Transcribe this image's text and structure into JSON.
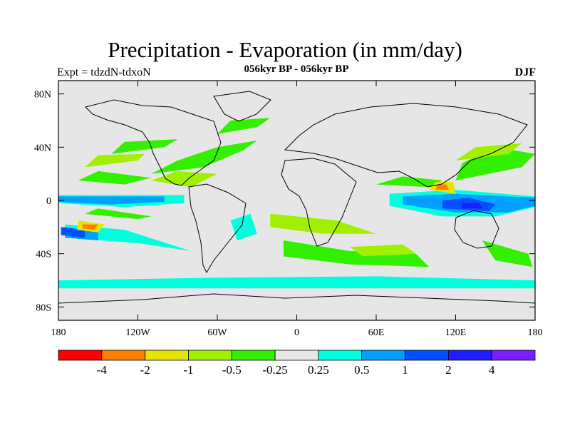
{
  "figure": {
    "title": "Precipitation - Evaporation (in mm/day)",
    "subtitle": "056kyr BP - 056kyr BP",
    "experiment": "Expt = tdzdN-tdxoN",
    "season": "DJF"
  },
  "map": {
    "projection": "equirectangular",
    "lon_range": [
      -180,
      180
    ],
    "lat_range": [
      -90,
      90
    ],
    "land_color": "#e6e6e6",
    "x_ticks": [
      {
        "value": -180,
        "label": "180"
      },
      {
        "value": -120,
        "label": "120W"
      },
      {
        "value": -60,
        "label": "60W"
      },
      {
        "value": 0,
        "label": "0"
      },
      {
        "value": 60,
        "label": "60E"
      },
      {
        "value": 120,
        "label": "120E"
      },
      {
        "value": 180,
        "label": "180"
      }
    ],
    "y_ticks": [
      {
        "value": 80,
        "label": "80N"
      },
      {
        "value": 40,
        "label": "40N"
      },
      {
        "value": 0,
        "label": "0"
      },
      {
        "value": -40,
        "label": "40S"
      },
      {
        "value": -80,
        "label": "80S"
      }
    ],
    "field_regions": [
      {
        "level": 5,
        "points": [
          [
            -180,
            -3
          ],
          [
            -100,
            -5
          ],
          [
            -80,
            -2
          ],
          [
            -80,
            6
          ],
          [
            -180,
            6
          ]
        ]
      },
      {
        "level": 5,
        "points": [
          [
            -170,
            -15
          ],
          [
            -120,
            -25
          ],
          [
            -75,
            -42
          ],
          [
            -65,
            -48
          ],
          [
            -120,
            -36
          ],
          [
            -175,
            -30
          ]
        ]
      },
      {
        "level": 5,
        "points": [
          [
            -180,
            30
          ],
          [
            -120,
            40
          ],
          [
            -80,
            55
          ],
          [
            -60,
            65
          ],
          [
            -20,
            70
          ],
          [
            20,
            75
          ],
          [
            60,
            80
          ],
          [
            120,
            80
          ],
          [
            180,
            75
          ],
          [
            180,
            60
          ],
          [
            120,
            55
          ],
          [
            60,
            40
          ],
          [
            0,
            50
          ],
          [
            -60,
            40
          ],
          [
            -120,
            30
          ]
        ]
      },
      {
        "level": 5,
        "points": [
          [
            -180,
            -55
          ],
          [
            -90,
            -55
          ],
          [
            0,
            -52
          ],
          [
            90,
            -52
          ],
          [
            180,
            -55
          ],
          [
            180,
            -70
          ],
          [
            -180,
            -70
          ]
        ]
      },
      {
        "level": 5,
        "points": [
          [
            60,
            -5
          ],
          [
            110,
            -15
          ],
          [
            160,
            -15
          ],
          [
            180,
            -8
          ],
          [
            180,
            5
          ],
          [
            120,
            12
          ],
          [
            60,
            8
          ]
        ]
      },
      {
        "level": 6,
        "points": [
          [
            -180,
            -2
          ],
          [
            -130,
            -5
          ],
          [
            -85,
            -2
          ],
          [
            -85,
            4
          ],
          [
            -180,
            4
          ]
        ]
      },
      {
        "level": 6,
        "points": [
          [
            -175,
            -18
          ],
          [
            -130,
            -22
          ],
          [
            -80,
            -38
          ],
          [
            -120,
            -32
          ],
          [
            -175,
            -28
          ]
        ]
      },
      {
        "level": 6,
        "points": [
          [
            70,
            -4
          ],
          [
            110,
            -12
          ],
          [
            150,
            -12
          ],
          [
            180,
            -5
          ],
          [
            180,
            3
          ],
          [
            120,
            8
          ],
          [
            70,
            5
          ]
        ]
      },
      {
        "level": 6,
        "points": [
          [
            -180,
            -60
          ],
          [
            -60,
            -58
          ],
          [
            60,
            -57
          ],
          [
            180,
            -60
          ],
          [
            180,
            -66
          ],
          [
            -180,
            -66
          ]
        ]
      },
      {
        "level": 6,
        "points": [
          [
            -50,
            -15
          ],
          [
            -35,
            -10
          ],
          [
            -30,
            -25
          ],
          [
            -45,
            -30
          ]
        ]
      },
      {
        "level": 7,
        "points": [
          [
            -180,
            -1
          ],
          [
            -140,
            -3
          ],
          [
            -100,
            -1
          ],
          [
            -100,
            3
          ],
          [
            -180,
            3
          ]
        ]
      },
      {
        "level": 7,
        "points": [
          [
            80,
            -3
          ],
          [
            120,
            -9
          ],
          [
            160,
            -9
          ],
          [
            180,
            -4
          ],
          [
            180,
            2
          ],
          [
            120,
            5
          ],
          [
            80,
            3
          ]
        ]
      },
      {
        "level": 7,
        "points": [
          [
            -175,
            -20
          ],
          [
            -150,
            -24
          ],
          [
            -150,
            -30
          ],
          [
            -175,
            -28
          ]
        ]
      },
      {
        "level": 8,
        "points": [
          [
            -178,
            -20
          ],
          [
            -160,
            -22
          ],
          [
            -160,
            -28
          ],
          [
            -178,
            -26
          ]
        ]
      },
      {
        "level": 8,
        "points": [
          [
            110,
            -6
          ],
          [
            145,
            -8
          ],
          [
            150,
            -3
          ],
          [
            130,
            2
          ],
          [
            110,
            0
          ]
        ]
      },
      {
        "level": 9,
        "points": [
          [
            125,
            -6
          ],
          [
            140,
            -6
          ],
          [
            138,
            -2
          ],
          [
            125,
            -2
          ]
        ]
      },
      {
        "level": 4,
        "points": [
          [
            -160,
            -10
          ],
          [
            -120,
            -14
          ],
          [
            -110,
            -12
          ],
          [
            -150,
            -6
          ]
        ]
      },
      {
        "level": 4,
        "points": [
          [
            -165,
            15
          ],
          [
            -130,
            12
          ],
          [
            -110,
            17
          ],
          [
            -150,
            22
          ]
        ]
      },
      {
        "level": 4,
        "points": [
          [
            -110,
            20
          ],
          [
            -70,
            25
          ],
          [
            -40,
            38
          ],
          [
            -30,
            45
          ],
          [
            -60,
            40
          ],
          [
            -90,
            30
          ]
        ]
      },
      {
        "level": 4,
        "points": [
          [
            -60,
            50
          ],
          [
            -30,
            55
          ],
          [
            -20,
            62
          ],
          [
            -50,
            60
          ]
        ]
      },
      {
        "level": 4,
        "points": [
          [
            120,
            15
          ],
          [
            170,
            25
          ],
          [
            180,
            35
          ],
          [
            150,
            40
          ],
          [
            125,
            28
          ]
        ]
      },
      {
        "level": 4,
        "points": [
          [
            -10,
            -30
          ],
          [
            40,
            -38
          ],
          [
            90,
            -40
          ],
          [
            100,
            -50
          ],
          [
            40,
            -48
          ],
          [
            -10,
            -42
          ]
        ]
      },
      {
        "level": 4,
        "points": [
          [
            140,
            -30
          ],
          [
            175,
            -40
          ],
          [
            178,
            -50
          ],
          [
            150,
            -45
          ]
        ]
      },
      {
        "level": 4,
        "points": [
          [
            -140,
            35
          ],
          [
            -100,
            40
          ],
          [
            -90,
            46
          ],
          [
            -130,
            44
          ]
        ]
      },
      {
        "level": 4,
        "points": [
          [
            60,
            12
          ],
          [
            100,
            10
          ],
          [
            110,
            15
          ],
          [
            80,
            18
          ]
        ]
      },
      {
        "level": 3,
        "points": [
          [
            -20,
            -10
          ],
          [
            30,
            -15
          ],
          [
            60,
            -25
          ],
          [
            20,
            -25
          ],
          [
            -20,
            -20
          ]
        ]
      },
      {
        "level": 3,
        "points": [
          [
            -160,
            25
          ],
          [
            -120,
            30
          ],
          [
            -115,
            35
          ],
          [
            -150,
            34
          ]
        ]
      },
      {
        "level": 3,
        "points": [
          [
            120,
            30
          ],
          [
            160,
            35
          ],
          [
            170,
            43
          ],
          [
            135,
            40
          ]
        ]
      },
      {
        "level": 3,
        "points": [
          [
            -110,
            15
          ],
          [
            -80,
            10
          ],
          [
            -60,
            20
          ],
          [
            -90,
            22
          ]
        ]
      },
      {
        "level": 3,
        "points": [
          [
            40,
            -35
          ],
          [
            80,
            -33
          ],
          [
            90,
            -40
          ],
          [
            50,
            -42
          ]
        ]
      },
      {
        "level": 2,
        "points": [
          [
            -165,
            -15
          ],
          [
            -145,
            -18
          ],
          [
            -150,
            -24
          ],
          [
            -166,
            -22
          ]
        ]
      },
      {
        "level": 2,
        "points": [
          [
            100,
            8
          ],
          [
            120,
            5
          ],
          [
            118,
            14
          ],
          [
            105,
            14
          ]
        ]
      },
      {
        "level": 1,
        "points": [
          [
            -162,
            -18
          ],
          [
            -150,
            -18
          ],
          [
            -153,
            -22
          ],
          [
            -162,
            -21
          ]
        ]
      },
      {
        "level": 1,
        "points": [
          [
            105,
            8
          ],
          [
            115,
            8
          ],
          [
            113,
            12
          ],
          [
            106,
            12
          ]
        ]
      }
    ]
  },
  "colorbar": {
    "colors": [
      "#ff0000",
      "#ff7f00",
      "#e5e500",
      "#a0f000",
      "#33f000",
      "#e6e6e6",
      "#00ffdd",
      "#00a0ff",
      "#0050ff",
      "#1e1eff",
      "#7a1eff"
    ],
    "labels": [
      "-4",
      "-2",
      "-1",
      "-0.5",
      "-0.25",
      "0.25",
      "0.5",
      "1",
      "2",
      "4"
    ]
  }
}
